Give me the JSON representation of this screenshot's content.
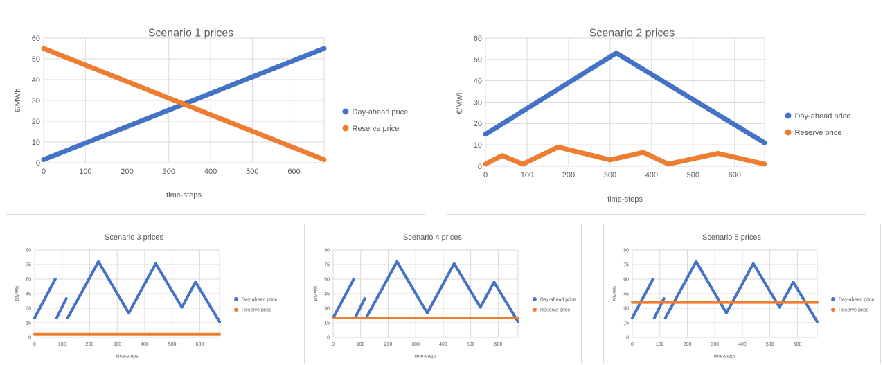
{
  "colors": {
    "day_ahead": "#4472c4",
    "reserve": "#ed7d31",
    "grid": "#d9d9d9",
    "text": "#595959"
  },
  "chart_data": [
    {
      "type": "line",
      "title": "Scenario 1 prices",
      "xlabel": "time-steps",
      "ylabel": "€/MWh",
      "xlim": [
        0,
        672
      ],
      "ylim": [
        0,
        60
      ],
      "xticks": [
        0,
        100,
        200,
        300,
        400,
        500,
        600
      ],
      "yticks": [
        0,
        10,
        20,
        30,
        40,
        50,
        60
      ],
      "grid": true,
      "legend": "right",
      "series": [
        {
          "name": "Day-ahead price",
          "color": "#4472c4",
          "segments": [
            [
              [
                0,
                1.5
              ],
              [
                672,
                55
              ]
            ]
          ]
        },
        {
          "name": "Reserve price",
          "color": "#ed7d31",
          "segments": [
            [
              [
                0,
                55
              ],
              [
                672,
                1.5
              ]
            ]
          ]
        }
      ]
    },
    {
      "type": "line",
      "title": "Scenario 2 prices",
      "xlabel": "time-steps",
      "ylabel": "€/MWh",
      "xlim": [
        0,
        672
      ],
      "ylim": [
        0,
        60
      ],
      "xticks": [
        0,
        100,
        200,
        300,
        400,
        500,
        600
      ],
      "yticks": [
        0,
        10,
        20,
        30,
        40,
        50,
        60
      ],
      "grid": true,
      "legend": "right",
      "series": [
        {
          "name": "Day-ahead price",
          "color": "#4472c4",
          "segments": [
            [
              [
                0,
                15
              ],
              [
                315,
                53
              ],
              [
                672,
                11
              ]
            ]
          ]
        },
        {
          "name": "Reserve price",
          "color": "#ed7d31",
          "segments": [
            [
              [
                0,
                1
              ],
              [
                40,
                5
              ],
              [
                90,
                1
              ],
              [
                175,
                9
              ],
              [
                300,
                3
              ],
              [
                380,
                6.5
              ],
              [
                440,
                1
              ],
              [
                560,
                6
              ],
              [
                672,
                1
              ]
            ]
          ]
        }
      ]
    },
    {
      "type": "line",
      "title": "Scenario 3 prices",
      "xlabel": "time-steps",
      "ylabel": "€/MWh",
      "xlim": [
        0,
        672
      ],
      "ylim": [
        0,
        90
      ],
      "xticks": [
        0,
        100,
        200,
        300,
        400,
        500,
        600
      ],
      "yticks": [
        0,
        15,
        30,
        45,
        60,
        75,
        90
      ],
      "grid": true,
      "legend": "right",
      "series": [
        {
          "name": "Day-ahead price",
          "color": "#4472c4",
          "segments": [
            [
              [
                0,
                20
              ],
              [
                75,
                60
              ]
            ],
            [
              [
                80,
                20
              ],
              [
                115,
                40
              ]
            ],
            [
              [
                120,
                20
              ],
              [
                232,
                78
              ],
              [
                342,
                25
              ],
              [
                440,
                76
              ],
              [
                535,
                31
              ],
              [
                585,
                57
              ],
              [
                672,
                16
              ]
            ]
          ]
        },
        {
          "name": "Reserve price",
          "color": "#ed7d31",
          "segments": [
            [
              [
                0,
                3
              ],
              [
                672,
                3
              ]
            ]
          ]
        }
      ]
    },
    {
      "type": "line",
      "title": "Scenario 4 prices",
      "xlabel": "time-steps",
      "ylabel": "€/MWh",
      "xlim": [
        0,
        672
      ],
      "ylim": [
        0,
        90
      ],
      "xticks": [
        0,
        100,
        200,
        300,
        400,
        500,
        600
      ],
      "yticks": [
        0,
        15,
        30,
        45,
        60,
        75,
        90
      ],
      "grid": true,
      "legend": "right",
      "series": [
        {
          "name": "Day-ahead price",
          "color": "#4472c4",
          "segments": [
            [
              [
                0,
                20
              ],
              [
                75,
                60
              ]
            ],
            [
              [
                80,
                20
              ],
              [
                115,
                40
              ]
            ],
            [
              [
                120,
                20
              ],
              [
                232,
                78
              ],
              [
                342,
                25
              ],
              [
                440,
                76
              ],
              [
                535,
                31
              ],
              [
                585,
                57
              ],
              [
                672,
                16
              ]
            ]
          ]
        },
        {
          "name": "Reserve price",
          "color": "#ed7d31",
          "segments": [
            [
              [
                0,
                20
              ],
              [
                672,
                20
              ]
            ]
          ]
        }
      ]
    },
    {
      "type": "line",
      "title": "Scenario 5 prices",
      "xlabel": "time-steps",
      "ylabel": "€/MWh",
      "xlim": [
        0,
        672
      ],
      "ylim": [
        0,
        90
      ],
      "xticks": [
        0,
        100,
        200,
        300,
        400,
        500,
        600
      ],
      "yticks": [
        0,
        15,
        30,
        45,
        60,
        75,
        90
      ],
      "grid": true,
      "legend": "right",
      "series": [
        {
          "name": "Day-ahead price",
          "color": "#4472c4",
          "segments": [
            [
              [
                0,
                20
              ],
              [
                75,
                60
              ]
            ],
            [
              [
                80,
                20
              ],
              [
                115,
                40
              ]
            ],
            [
              [
                120,
                20
              ],
              [
                232,
                78
              ],
              [
                342,
                25
              ],
              [
                440,
                76
              ],
              [
                535,
                31
              ],
              [
                585,
                57
              ],
              [
                672,
                16
              ]
            ]
          ]
        },
        {
          "name": "Reserve price",
          "color": "#ed7d31",
          "segments": [
            [
              [
                0,
                36
              ],
              [
                672,
                36
              ]
            ]
          ]
        }
      ]
    }
  ]
}
